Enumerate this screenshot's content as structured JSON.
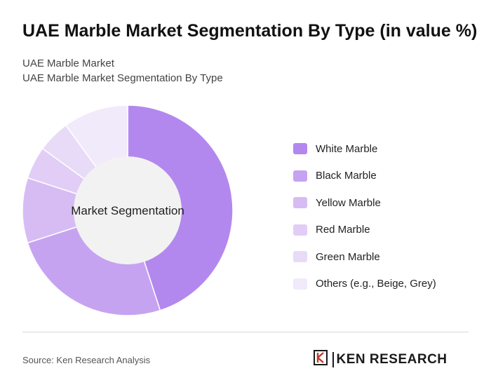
{
  "header": {
    "title": "UAE Marble Market Segmentation By Type (in value %)",
    "subtitle_1": "UAE Marble Market",
    "subtitle_2": "UAE Marble Market Segmentation By Type"
  },
  "chart_data": {
    "type": "pie",
    "variant": "donut",
    "center_label": "Market Segmentation",
    "categories": [
      "White Marble",
      "Black Marble",
      "Yellow Marble",
      "Red Marble",
      "Green Marble",
      "Others (e.g., Beige, Grey)"
    ],
    "values": [
      45,
      25,
      10,
      5,
      5,
      10
    ],
    "colors": [
      "#b388ee",
      "#c6a3f1",
      "#d7bcf4",
      "#e1cdf6",
      "#e8dbf8",
      "#f1eafb"
    ],
    "legend_position": "right"
  },
  "footer": {
    "source": "Source: Ken Research Analysis",
    "logo_text": "KEN RESEARCH",
    "logo_icon": "ken-research-k-logo-icon"
  }
}
